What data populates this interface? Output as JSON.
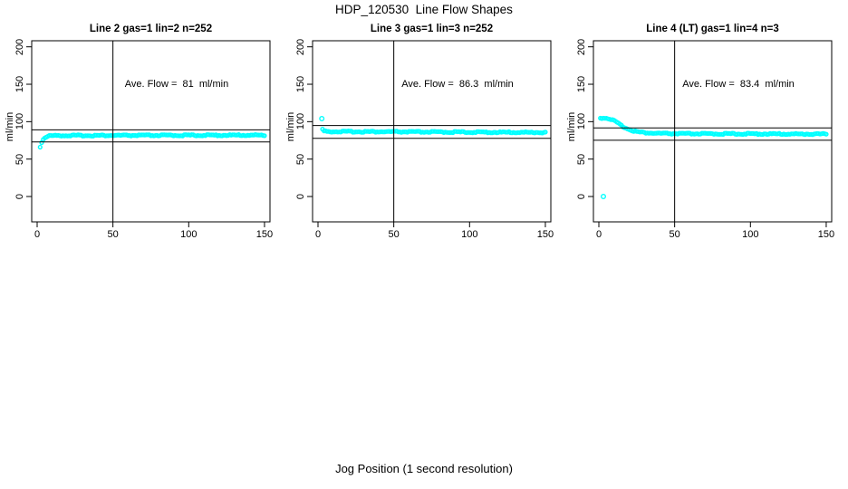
{
  "page": {
    "title": "HDP_120530  Line Flow Shapes",
    "xlabel": "Jog Position (1 second resolution)",
    "ylabel": "ml/min",
    "background": "#ffffff",
    "point_color": "#00ffff",
    "line_color": "#000000",
    "text_color": "#000000"
  },
  "axes": {
    "x_ticks": [
      0,
      50,
      100,
      150
    ],
    "y_ticks": [
      0,
      50,
      100,
      150,
      200
    ],
    "xlim": [
      0,
      150
    ],
    "ylim": [
      0,
      200
    ],
    "vline_x": 50,
    "grid": false,
    "ref_line_rule": "average flow +/- 10%"
  },
  "chart_data": [
    {
      "type": "scatter",
      "title": "Line 2 gas=1 lin=2 n=252",
      "line": 2,
      "gas": 1,
      "lin": 2,
      "n": 252,
      "ave_flow": 81,
      "ave_flow_label": "Ave. Flow =  81  ml/min",
      "ref_lines_y": [
        89.1,
        72.9
      ],
      "series_keypoints": [
        [
          2,
          66
        ],
        [
          3,
          72.5
        ],
        [
          4,
          76.5
        ],
        [
          5,
          78.5
        ],
        [
          6,
          79.8
        ],
        [
          7,
          80.5
        ],
        [
          8,
          81
        ],
        [
          10,
          81.3
        ],
        [
          15,
          81.5
        ],
        [
          30,
          81.5
        ],
        [
          50,
          81.6
        ],
        [
          100,
          81.8
        ],
        [
          150,
          82
        ]
      ],
      "outliers": []
    },
    {
      "type": "scatter",
      "title": "Line 3 gas=1 lin=3 n=252",
      "line": 3,
      "gas": 1,
      "lin": 3,
      "n": 252,
      "ave_flow": 86.3,
      "ave_flow_label": "Ave. Flow =  86.3  ml/min",
      "ref_lines_y": [
        94.9,
        77.7
      ],
      "series_keypoints": [
        [
          3,
          90
        ],
        [
          4,
          87.5
        ],
        [
          5,
          87
        ],
        [
          8,
          86.8
        ],
        [
          20,
          86.7
        ],
        [
          50,
          86.5
        ],
        [
          80,
          86.2
        ],
        [
          100,
          86
        ],
        [
          120,
          85.8
        ],
        [
          150,
          85.6
        ]
      ],
      "outliers": [
        [
          2.5,
          104
        ]
      ]
    },
    {
      "type": "scatter",
      "title": "Line 4 (LT) gas=1 lin=4 n=3",
      "line": 4,
      "gas": 1,
      "lin": 4,
      "n": 3,
      "ave_flow": 83.4,
      "ave_flow_label": "Ave. Flow =  83.4  ml/min",
      "ref_lines_y": [
        91.7,
        75.1
      ],
      "series_keypoints": [
        [
          1,
          105
        ],
        [
          4,
          105
        ],
        [
          6,
          104.5
        ],
        [
          8,
          103.2
        ],
        [
          10,
          101.3
        ],
        [
          12,
          98.8
        ],
        [
          14,
          96
        ],
        [
          16,
          93.5
        ],
        [
          18,
          91.3
        ],
        [
          20,
          89.6
        ],
        [
          23,
          87.7
        ],
        [
          26,
          86.4
        ],
        [
          30,
          85.4
        ],
        [
          35,
          84.7
        ],
        [
          40,
          84.3
        ],
        [
          50,
          84
        ],
        [
          70,
          83.8
        ],
        [
          100,
          83.7
        ],
        [
          150,
          83.4
        ]
      ],
      "outliers": [
        [
          3,
          0
        ]
      ]
    }
  ]
}
